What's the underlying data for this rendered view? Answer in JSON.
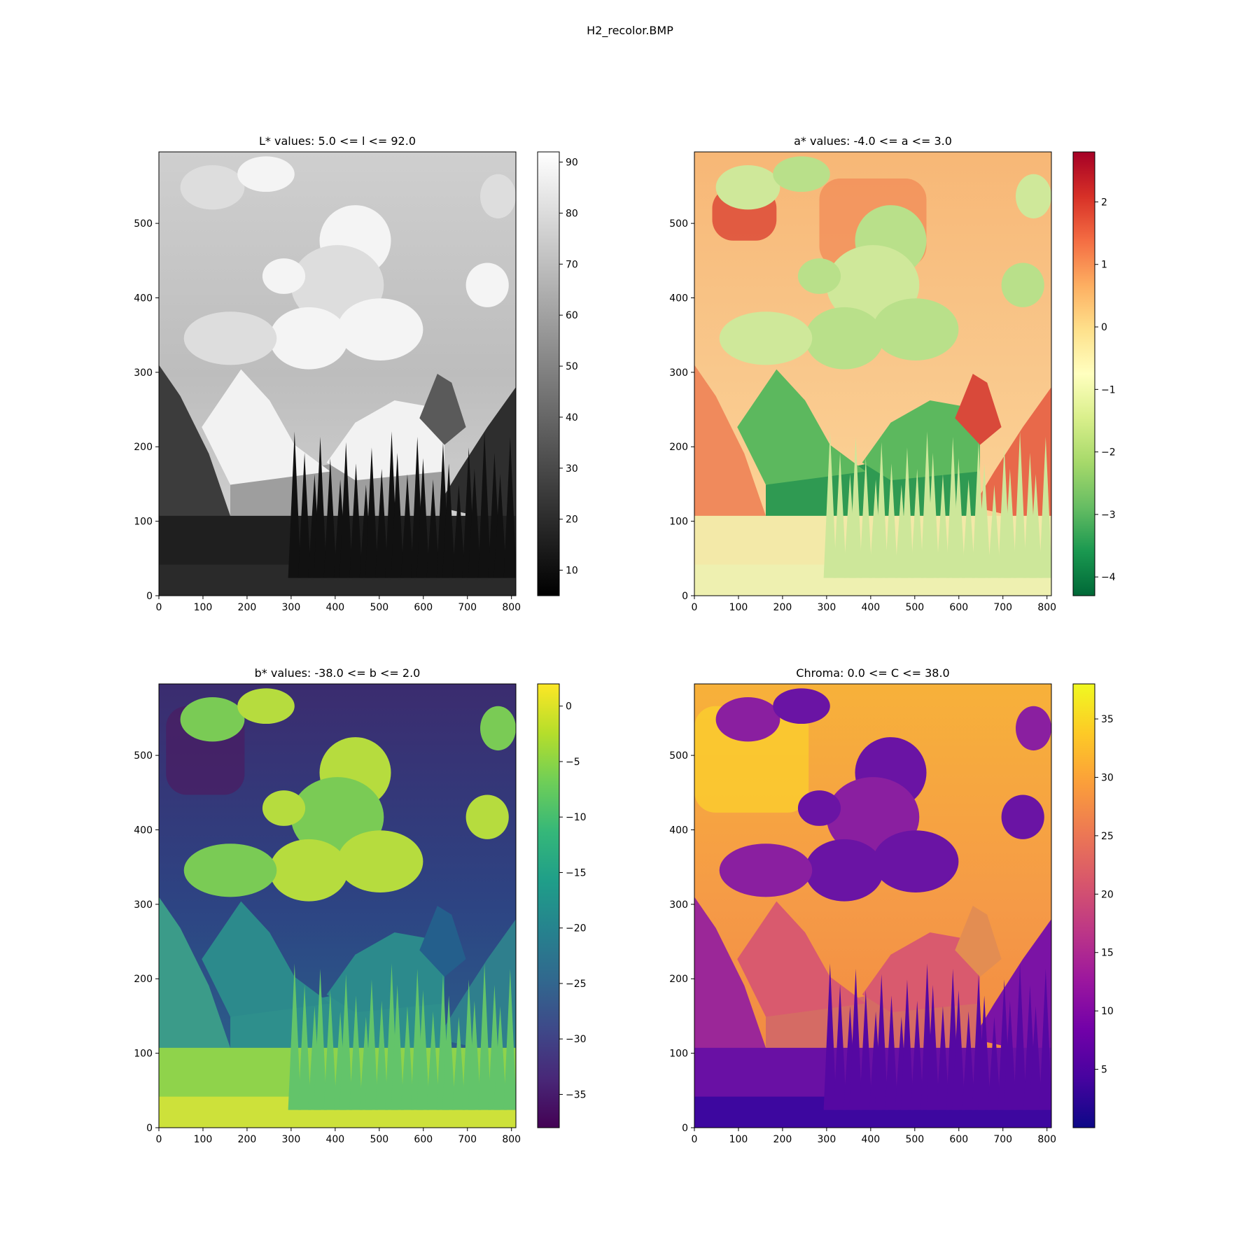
{
  "figure": {
    "title": "H2_recolor.BMP"
  },
  "chart_data": [
    {
      "type": "heatmap",
      "title": "L* values: 5.0 <= l <= 92.0",
      "xlim": [
        0,
        810
      ],
      "ylim": [
        0,
        596
      ],
      "xticks": [
        0,
        100,
        200,
        300,
        400,
        500,
        600,
        700,
        800
      ],
      "yticks": [
        0,
        100,
        200,
        300,
        400,
        500
      ],
      "colormap": "gray",
      "colorbar": {
        "range": [
          5,
          92
        ],
        "ticks": [
          10,
          20,
          30,
          40,
          50,
          60,
          70,
          80,
          90
        ]
      },
      "data_range": [
        5.0,
        92.0
      ],
      "image_description": "Grayscale mountain landscape: bright sky with cumulus clouds, snow-capped peaks near x 180-420 and 580-720, dark coniferous forest across the bottom"
    },
    {
      "type": "heatmap",
      "title": "a* values: -4.0 <= a <= 3.0",
      "xlim": [
        0,
        810
      ],
      "ylim": [
        0,
        596
      ],
      "xticks": [
        0,
        100,
        200,
        300,
        400,
        500,
        600,
        700,
        800
      ],
      "yticks": [
        0,
        100,
        200,
        300,
        400,
        500
      ],
      "colormap": "RdYlGn_r",
      "colorbar": {
        "range": [
          -4.3,
          2.8
        ],
        "ticks": [
          -4,
          -3,
          -2,
          -1,
          0,
          1,
          2
        ],
        "tick_labels": [
          "−4",
          "−3",
          "−2",
          "−1",
          "0",
          "1",
          "2"
        ]
      },
      "data_range": [
        -4.0,
        3.0
      ],
      "image_description": "Mostly pale yellow/orange field; reddish patches at top-left, left edge and right mountain; deep green inverted-triangle region in the center valley"
    },
    {
      "type": "heatmap",
      "title": "b* values: -38.0 <= b <= 2.0",
      "xlim": [
        0,
        810
      ],
      "ylim": [
        0,
        596
      ],
      "xticks": [
        0,
        100,
        200,
        300,
        400,
        500,
        600,
        700,
        800
      ],
      "yticks": [
        0,
        100,
        200,
        300,
        400,
        500
      ],
      "colormap": "viridis",
      "colorbar": {
        "range": [
          -38,
          2
        ],
        "ticks": [
          -35,
          -30,
          -25,
          -20,
          -15,
          -10,
          -5,
          0
        ],
        "tick_labels": [
          "−35",
          "−30",
          "−25",
          "−20",
          "−15",
          "−10",
          "−5",
          "0"
        ]
      },
      "data_range": [
        -38.0,
        2.0
      ],
      "image_description": "Dark purple-blue sky regions at the top; yellow-green clouds; teal mountains; yellow-green foreground near the bottom"
    },
    {
      "type": "heatmap",
      "title": "Chroma: 0.0 <= C <= 38.0",
      "xlim": [
        0,
        810
      ],
      "ylim": [
        0,
        596
      ],
      "xticks": [
        0,
        100,
        200,
        300,
        400,
        500,
        600,
        700,
        800
      ],
      "yticks": [
        0,
        100,
        200,
        300,
        400,
        500
      ],
      "colormap": "plasma",
      "colorbar": {
        "range": [
          0,
          38
        ],
        "ticks": [
          5,
          10,
          15,
          20,
          25,
          30,
          35
        ]
      },
      "data_range": [
        0.0,
        38.0
      ],
      "image_description": "Bright yellow-orange sky at top; purple clouds; orange-pink mountain faces; deep blue-purple foreground at bottom"
    }
  ]
}
